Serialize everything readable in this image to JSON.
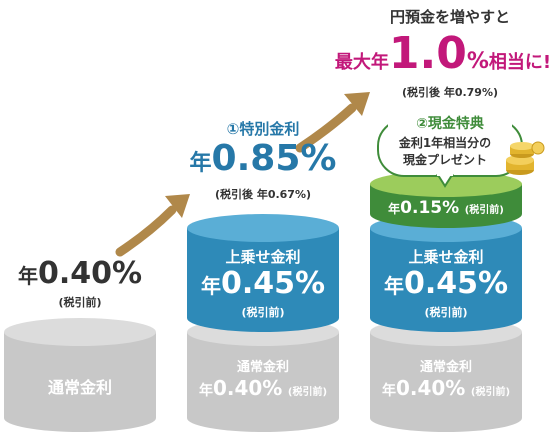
{
  "colors": {
    "gray": "#c8c8c8",
    "gray_top": "#dcdcdc",
    "blue": "#2e8ab8",
    "blue_top": "#5aaed6",
    "green": "#3f8c3a",
    "green_top": "#9ccc5c",
    "magenta": "#c2187a",
    "teal_text": "#2678a8",
    "arrow": "#b0884a"
  },
  "col1": {
    "rate_prefix": "年",
    "rate_value": "0.40%",
    "tax_note": "(税引前)",
    "base_label": "通常金利"
  },
  "col2": {
    "step_label": "①特別金利",
    "rate_prefix": "年",
    "rate_value": "0.85%",
    "after_tax": "(税引後 年0.67%)",
    "bonus_label": "上乗せ金利",
    "bonus_prefix": "年",
    "bonus_value": "0.45%",
    "bonus_note": "(税引前)",
    "base_label": "通常金利",
    "base_prefix": "年",
    "base_value": "0.40%",
    "base_note": "(税引前)"
  },
  "col3": {
    "intro": "円預金を増やすと",
    "max_prefix": "最大年",
    "max_value": "1.0",
    "max_percent": "%",
    "max_suffix": "相当に!",
    "after_tax": "(税引後 年0.79%)",
    "cash_title": "②現金特典",
    "cash_line1": "金利1年相当分の",
    "cash_line2": "現金プレゼント",
    "cash_rate_prefix": "年",
    "cash_rate_value": "0.15%",
    "cash_rate_note": "(税引前)",
    "bonus_label": "上乗せ金利",
    "bonus_prefix": "年",
    "bonus_value": "0.45%",
    "bonus_note": "(税引前)",
    "base_label": "通常金利",
    "base_prefix": "年",
    "base_value": "0.40%",
    "base_note": "(税引前)"
  }
}
